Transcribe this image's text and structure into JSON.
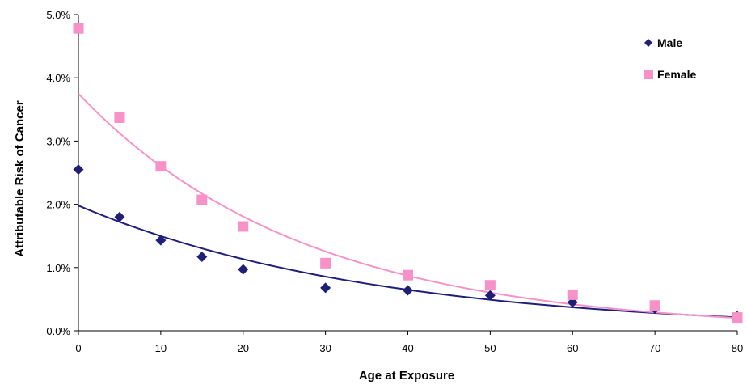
{
  "chart_data": {
    "type": "scatter",
    "xlabel": "Age at Exposure",
    "ylabel": "Attributable Risk of Cancer",
    "xlim": [
      0,
      80
    ],
    "ylim": [
      0,
      5.0
    ],
    "x_ticks": [
      0,
      10,
      20,
      30,
      40,
      50,
      60,
      70,
      80
    ],
    "y_ticks": [
      0,
      1,
      2,
      3,
      4,
      5
    ],
    "y_tick_labels": [
      "0.0%",
      "1.0%",
      "2.0%",
      "3.0%",
      "4.0%",
      "5.0%"
    ],
    "grid": false,
    "legend_position": "top-right",
    "series": [
      {
        "name": "Male",
        "marker": "diamond",
        "color": "#1f1f7a",
        "x": [
          0,
          5,
          10,
          15,
          20,
          30,
          40,
          50,
          60,
          70,
          80
        ],
        "y": [
          2.55,
          1.8,
          1.43,
          1.17,
          0.97,
          0.68,
          0.64,
          0.56,
          0.45,
          0.35,
          0.23
        ],
        "trendline": {
          "type": "exponential",
          "color": "#1f1f7a",
          "start": 1.98,
          "rate": 0.0279
        }
      },
      {
        "name": "Female",
        "marker": "square",
        "color": "#f792c8",
        "x": [
          0,
          5,
          10,
          15,
          20,
          30,
          40,
          50,
          60,
          70,
          80
        ],
        "y": [
          4.78,
          3.37,
          2.6,
          2.07,
          1.65,
          1.07,
          0.88,
          0.72,
          0.57,
          0.4,
          0.21
        ],
        "trendline": {
          "type": "exponential",
          "color": "#f792c8",
          "start": 3.75,
          "rate": 0.0365
        }
      }
    ]
  }
}
